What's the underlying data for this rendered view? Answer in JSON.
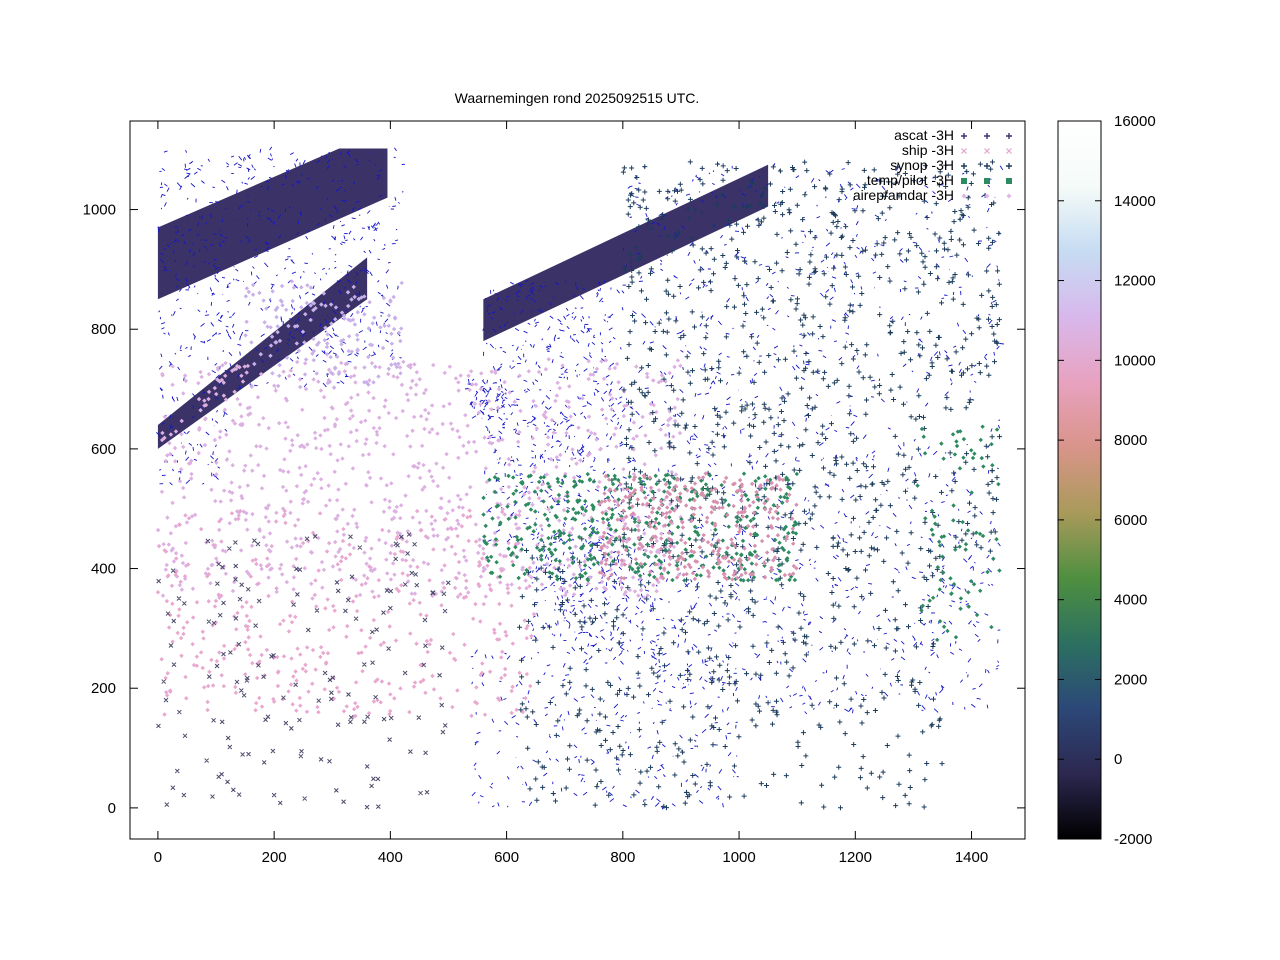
{
  "chart_data": {
    "type": "scatter",
    "title": "Waarnemingen rond 2025092515 UTC.",
    "xlabel": "",
    "ylabel": "",
    "xlim": [
      -48,
      1492
    ],
    "ylim": [
      -52,
      1148
    ],
    "x_ticks": [
      "0",
      "200",
      "400",
      "600",
      "800",
      "1000",
      "1200",
      "1400"
    ],
    "y_ticks": [
      "0",
      "200",
      "400",
      "600",
      "800",
      "1000"
    ],
    "x_tick_values": [
      0,
      200,
      400,
      600,
      800,
      1000,
      1200,
      1400
    ],
    "y_tick_values": [
      0,
      200,
      400,
      600,
      800,
      1000
    ],
    "grid": false,
    "legend_position": "top-right",
    "series": [
      {
        "name": "ascat -3H",
        "marker": "plus-dot",
        "color": "#3a3470"
      },
      {
        "name": "ship -3H",
        "marker": "cross",
        "color": "#e2a2cc"
      },
      {
        "name": "synop -3H",
        "marker": "plus",
        "color": "#1c3c5c"
      },
      {
        "name": "temp/pilot -3H",
        "marker": "square",
        "color": "#2e8a60"
      },
      {
        "name": "airep/amdar -3H",
        "marker": "diamond",
        "color": "#e0b6e4"
      }
    ],
    "colorbar": {
      "min": -2000,
      "max": 16000,
      "ticks": [
        "16000",
        "14000",
        "12000",
        "10000",
        "8000",
        "6000",
        "4000",
        "2000",
        "0",
        "-2000"
      ],
      "tick_values": [
        16000,
        14000,
        12000,
        10000,
        8000,
        6000,
        4000,
        2000,
        0,
        -2000
      ],
      "stops": [
        "#000000",
        "#2c2850",
        "#2c4878",
        "#2c7060",
        "#4f8f40",
        "#a99a5a",
        "#d9948a",
        "#e8a2c0",
        "#d8b8ec",
        "#c6dcf2",
        "#f5fbf8",
        "#ffffff"
      ]
    },
    "ascat_swaths": [
      {
        "poly": [
          [
            0,
            850
          ],
          [
            395,
            1020
          ],
          [
            395,
            1102
          ],
          [
            312,
            1102
          ],
          [
            0,
            970
          ]
        ]
      },
      {
        "poly": [
          [
            0,
            600
          ],
          [
            0,
            640
          ],
          [
            360,
            920
          ],
          [
            360,
            850
          ]
        ]
      },
      {
        "poly": [
          [
            560,
            850
          ],
          [
            1050,
            1075
          ],
          [
            1050,
            1005
          ],
          [
            560,
            780
          ]
        ]
      }
    ]
  }
}
